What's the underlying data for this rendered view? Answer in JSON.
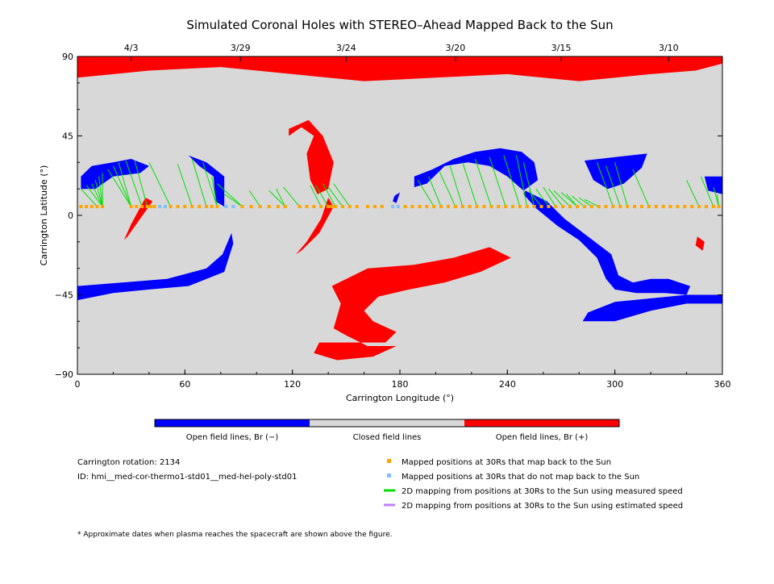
{
  "title": "Simulated Coronal Holes with STEREO–Ahead Mapped Back to the Sun",
  "chart_data": {
    "type": "map",
    "title": "Simulated Coronal Holes with STEREO–Ahead Mapped Back to the Sun",
    "xlabel": "Carrington Longitude (°)",
    "ylabel": "Carrington Latitude (°)",
    "xlim": [
      0,
      360
    ],
    "ylim": [
      -90,
      90
    ],
    "x_ticks": [
      {
        "value": 0,
        "label": "0"
      },
      {
        "value": 60,
        "label": "60"
      },
      {
        "value": 120,
        "label": "120"
      },
      {
        "value": 180,
        "label": "180"
      },
      {
        "value": 240,
        "label": "240"
      },
      {
        "value": 300,
        "label": "300"
      },
      {
        "value": 360,
        "label": "360"
      }
    ],
    "y_ticks": [
      {
        "value": 90,
        "label": "90"
      },
      {
        "value": 45,
        "label": "45"
      },
      {
        "value": 0,
        "label": "0"
      },
      {
        "value": -45,
        "label": "−45"
      },
      {
        "value": -90,
        "label": "−90"
      }
    ],
    "top_date_ticks": [
      {
        "longitude": 30,
        "label": "4/3"
      },
      {
        "longitude": 91,
        "label": "3/29"
      },
      {
        "longitude": 150,
        "label": "3/24"
      },
      {
        "longitude": 211,
        "label": "3/20"
      },
      {
        "longitude": 270,
        "label": "3/15"
      },
      {
        "longitude": 330,
        "label": "3/10"
      }
    ],
    "colors": {
      "closed": "#d8d8d8",
      "open_positive": "#ff0000",
      "open_negative": "#0000ff",
      "mapped_back": "#ffa500",
      "not_mapped_back": "#80c0ff",
      "measured_speed": "#00e000",
      "estimated_speed": "#c080ff"
    },
    "regions": [
      {
        "polarity": "positive",
        "points": [
          [
            0,
            78
          ],
          [
            40,
            82
          ],
          [
            80,
            84
          ],
          [
            120,
            80
          ],
          [
            160,
            76
          ],
          [
            200,
            78
          ],
          [
            240,
            80
          ],
          [
            280,
            76
          ],
          [
            320,
            80
          ],
          [
            345,
            82
          ],
          [
            360,
            86
          ],
          [
            360,
            90
          ],
          [
            0,
            90
          ]
        ]
      },
      {
        "polarity": "positive",
        "points": [
          [
            118,
            45
          ],
          [
            125,
            50
          ],
          [
            132,
            45
          ],
          [
            128,
            35
          ],
          [
            130,
            20
          ],
          [
            134,
            12
          ],
          [
            140,
            15
          ],
          [
            143,
            30
          ],
          [
            137,
            45
          ],
          [
            129,
            54
          ],
          [
            118,
            49
          ]
        ]
      },
      {
        "polarity": "positive",
        "points": [
          [
            140,
            10
          ],
          [
            143,
            5
          ],
          [
            135,
            -10
          ],
          [
            125,
            -20
          ],
          [
            122,
            -22
          ],
          [
            128,
            -15
          ],
          [
            136,
            -2
          ]
        ]
      },
      {
        "polarity": "positive",
        "points": [
          [
            38,
            10
          ],
          [
            42,
            8
          ],
          [
            28,
            -12
          ],
          [
            26,
            -14
          ],
          [
            30,
            -5
          ]
        ]
      },
      {
        "polarity": "positive",
        "points": [
          [
            132,
            -78
          ],
          [
            145,
            -82
          ],
          [
            165,
            -80
          ],
          [
            178,
            -74
          ],
          [
            162,
            -74
          ],
          [
            150,
            -68
          ],
          [
            143,
            -64
          ],
          [
            147,
            -50
          ],
          [
            142,
            -40
          ],
          [
            162,
            -30
          ],
          [
            188,
            -28
          ],
          [
            210,
            -24
          ],
          [
            230,
            -18
          ],
          [
            242,
            -24
          ],
          [
            225,
            -32
          ],
          [
            205,
            -38
          ],
          [
            185,
            -42
          ],
          [
            168,
            -46
          ],
          [
            160,
            -54
          ],
          [
            165,
            -60
          ],
          [
            178,
            -66
          ],
          [
            172,
            -72
          ],
          [
            152,
            -72
          ],
          [
            135,
            -72
          ]
        ]
      },
      {
        "polarity": "positive",
        "points": [
          [
            346,
            -12
          ],
          [
            350,
            -15
          ],
          [
            349,
            -20
          ],
          [
            345,
            -17
          ]
        ]
      },
      {
        "polarity": "negative",
        "points": [
          [
            2,
            22
          ],
          [
            8,
            28
          ],
          [
            20,
            30
          ],
          [
            30,
            32
          ],
          [
            40,
            28
          ],
          [
            35,
            24
          ],
          [
            20,
            22
          ],
          [
            10,
            15
          ],
          [
            2,
            15
          ]
        ]
      },
      {
        "polarity": "negative",
        "points": [
          [
            62,
            34
          ],
          [
            72,
            30
          ],
          [
            82,
            22
          ],
          [
            82,
            5
          ],
          [
            77,
            8
          ],
          [
            76,
            22
          ],
          [
            68,
            28
          ]
        ]
      },
      {
        "polarity": "negative",
        "points": [
          [
            0,
            -48
          ],
          [
            20,
            -44
          ],
          [
            40,
            -42
          ],
          [
            62,
            -40
          ],
          [
            82,
            -32
          ],
          [
            87,
            -16
          ],
          [
            86,
            -10
          ],
          [
            81,
            -22
          ],
          [
            72,
            -30
          ],
          [
            50,
            -36
          ],
          [
            25,
            -38
          ],
          [
            0,
            -40
          ]
        ]
      },
      {
        "polarity": "negative",
        "points": [
          [
            188,
            22
          ],
          [
            198,
            26
          ],
          [
            210,
            32
          ],
          [
            222,
            36
          ],
          [
            236,
            38
          ],
          [
            248,
            36
          ],
          [
            255,
            30
          ],
          [
            257,
            20
          ],
          [
            249,
            14
          ],
          [
            240,
            22
          ],
          [
            230,
            28
          ],
          [
            218,
            30
          ],
          [
            205,
            28
          ],
          [
            195,
            18
          ],
          [
            188,
            16
          ]
        ]
      },
      {
        "polarity": "negative",
        "points": [
          [
            250,
            14
          ],
          [
            262,
            8
          ],
          [
            272,
            -2
          ],
          [
            285,
            -12
          ],
          [
            298,
            -22
          ],
          [
            302,
            -34
          ],
          [
            310,
            -38
          ],
          [
            320,
            -36
          ],
          [
            330,
            -36
          ],
          [
            342,
            -40
          ],
          [
            340,
            -45
          ],
          [
            328,
            -44
          ],
          [
            312,
            -44
          ],
          [
            300,
            -42
          ],
          [
            295,
            -36
          ],
          [
            290,
            -24
          ],
          [
            280,
            -14
          ],
          [
            268,
            -6
          ],
          [
            256,
            4
          ],
          [
            249,
            12
          ]
        ]
      },
      {
        "polarity": "negative",
        "points": [
          [
            283,
            31
          ],
          [
            300,
            33
          ],
          [
            318,
            35
          ],
          [
            315,
            27
          ],
          [
            305,
            18
          ],
          [
            296,
            15
          ],
          [
            288,
            20
          ]
        ]
      },
      {
        "polarity": "negative",
        "points": [
          [
            282,
            -60
          ],
          [
            300,
            -60
          ],
          [
            320,
            -54
          ],
          [
            340,
            -50
          ],
          [
            360,
            -50
          ],
          [
            360,
            -45
          ],
          [
            340,
            -45
          ],
          [
            320,
            -47
          ],
          [
            300,
            -49
          ],
          [
            285,
            -55
          ]
        ]
      },
      {
        "polarity": "negative",
        "points": [
          [
            350,
            22
          ],
          [
            360,
            22
          ],
          [
            360,
            12
          ],
          [
            352,
            14
          ]
        ]
      },
      {
        "polarity": "negative",
        "points": [
          [
            177,
            11
          ],
          [
            180,
            13
          ],
          [
            178,
            7
          ],
          [
            176,
            8
          ]
        ]
      }
    ],
    "footpoints": [
      [
        2,
        15
      ],
      [
        5,
        17
      ],
      [
        8,
        18
      ],
      [
        10,
        20
      ],
      [
        12,
        22
      ],
      [
        14,
        24
      ],
      [
        17,
        26
      ],
      [
        20,
        28
      ],
      [
        23,
        30
      ],
      [
        27,
        31
      ],
      [
        32,
        31
      ],
      [
        40,
        30
      ],
      [
        56,
        29
      ],
      [
        64,
        32
      ],
      [
        70,
        30
      ],
      [
        75,
        22
      ],
      [
        78,
        18
      ],
      [
        82,
        12
      ],
      [
        96,
        14
      ],
      [
        107,
        14
      ],
      [
        111,
        15
      ],
      [
        115,
        16
      ],
      [
        130,
        17
      ],
      [
        133,
        17
      ],
      [
        137,
        18
      ],
      [
        140,
        16
      ],
      [
        143,
        18
      ],
      [
        190,
        20
      ],
      [
        196,
        22
      ],
      [
        202,
        25
      ],
      [
        208,
        28
      ],
      [
        215,
        30
      ],
      [
        222,
        32
      ],
      [
        230,
        33
      ],
      [
        238,
        34
      ],
      [
        245,
        34
      ],
      [
        249,
        30
      ],
      [
        252,
        14
      ],
      [
        256,
        15
      ],
      [
        260,
        16
      ],
      [
        263,
        15
      ],
      [
        266,
        14
      ],
      [
        270,
        13
      ],
      [
        273,
        12
      ],
      [
        276,
        11
      ],
      [
        280,
        10
      ],
      [
        283,
        9
      ],
      [
        290,
        30
      ],
      [
        295,
        28
      ],
      [
        300,
        30
      ],
      [
        310,
        26
      ],
      [
        340,
        20
      ],
      [
        348,
        22
      ],
      [
        355,
        16
      ],
      [
        357,
        12
      ]
    ],
    "mapped_back": [
      [
        2,
        5
      ],
      [
        5,
        5
      ],
      [
        8,
        5
      ],
      [
        11,
        5
      ],
      [
        14,
        5
      ],
      [
        30,
        5
      ],
      [
        33,
        5
      ],
      [
        36,
        5
      ],
      [
        39,
        5
      ],
      [
        41,
        5
      ],
      [
        43,
        5
      ],
      [
        52,
        5
      ],
      [
        56,
        5
      ],
      [
        60,
        5
      ],
      [
        64,
        5
      ],
      [
        68,
        5
      ],
      [
        72,
        5
      ],
      [
        75,
        5
      ],
      [
        78,
        5
      ],
      [
        92,
        5
      ],
      [
        97,
        5
      ],
      [
        102,
        5
      ],
      [
        107,
        5
      ],
      [
        112,
        5
      ],
      [
        116,
        5
      ],
      [
        124,
        5
      ],
      [
        128,
        5
      ],
      [
        132,
        5
      ],
      [
        136,
        5
      ],
      [
        140,
        5
      ],
      [
        142,
        5
      ],
      [
        144,
        5
      ],
      [
        148,
        5
      ],
      [
        152,
        5
      ],
      [
        156,
        5
      ],
      [
        162,
        5
      ],
      [
        166,
        5
      ],
      [
        170,
        5
      ],
      [
        183,
        5
      ],
      [
        187,
        5
      ],
      [
        191,
        5
      ],
      [
        195,
        5
      ],
      [
        199,
        5
      ],
      [
        203,
        5
      ],
      [
        207,
        5
      ],
      [
        211,
        5
      ],
      [
        215,
        5
      ],
      [
        219,
        5
      ],
      [
        223,
        5
      ],
      [
        227,
        5
      ],
      [
        231,
        5
      ],
      [
        235,
        5
      ],
      [
        239,
        5
      ],
      [
        243,
        5
      ],
      [
        247,
        5
      ],
      [
        251,
        5
      ],
      [
        255,
        5
      ],
      [
        259,
        5
      ],
      [
        263,
        5
      ],
      [
        267,
        5
      ],
      [
        271,
        5
      ],
      [
        275,
        5
      ],
      [
        279,
        5
      ],
      [
        283,
        5
      ],
      [
        287,
        5
      ],
      [
        291,
        5
      ],
      [
        295,
        5
      ],
      [
        299,
        5
      ],
      [
        303,
        5
      ],
      [
        307,
        5
      ],
      [
        311,
        5
      ],
      [
        315,
        5
      ],
      [
        319,
        5
      ],
      [
        323,
        5
      ],
      [
        327,
        5
      ],
      [
        331,
        5
      ],
      [
        335,
        5
      ],
      [
        339,
        5
      ],
      [
        343,
        5
      ],
      [
        347,
        5
      ],
      [
        351,
        5
      ],
      [
        355,
        5
      ],
      [
        358,
        5
      ]
    ],
    "not_mapped_back": [
      [
        46,
        5
      ],
      [
        49,
        5
      ],
      [
        83,
        5
      ],
      [
        87,
        5
      ],
      [
        176,
        5
      ],
      [
        179,
        5
      ]
    ],
    "legend": {
      "colorbar": [
        {
          "label": "Open field lines, Br (−)",
          "color": "#0000ff"
        },
        {
          "label": "Closed field lines",
          "color": "#d8d8d8"
        },
        {
          "label": "Open field lines, Br (+)",
          "color": "#ff0000"
        }
      ],
      "items": [
        {
          "label": "Mapped positions at 30Rs that map back to the Sun",
          "color": "#ffa500",
          "kind": "square"
        },
        {
          "label": "Mapped positions at 30Rs that do not map back to the Sun",
          "color": "#80c0ff",
          "kind": "square"
        },
        {
          "label": "2D mapping from positions at 30Rs to the Sun using measured speed",
          "color": "#00e000",
          "kind": "line"
        },
        {
          "label": "2D mapping from positions at 30Rs to the Sun using estimated speed",
          "color": "#c080ff",
          "kind": "line"
        }
      ]
    }
  },
  "info": {
    "rotation": "Carrington rotation: 2134",
    "id": "ID: hmi__med-cor-thermo1-std01__med-hel-poly-std01"
  },
  "footnote": "* Approximate dates when plasma reaches the spacecraft are shown above the figure."
}
